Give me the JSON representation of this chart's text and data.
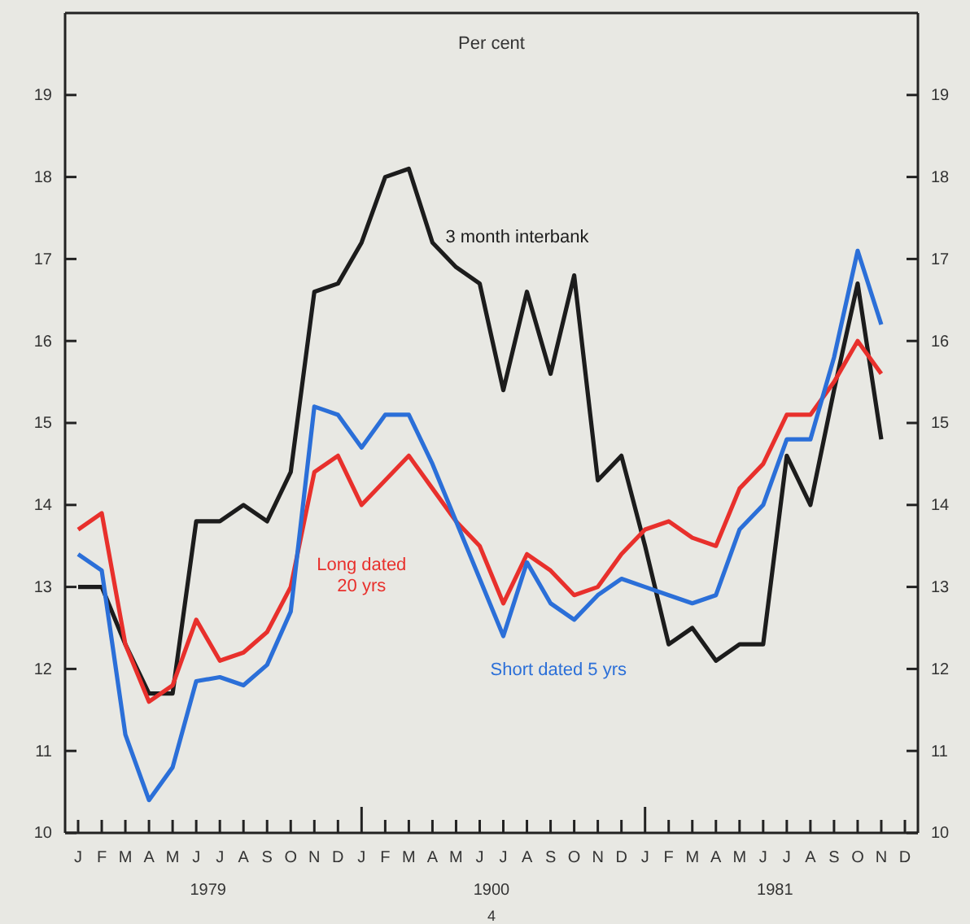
{
  "chart_data": {
    "type": "line",
    "subtitle": "Per cent",
    "categories": [
      "J",
      "F",
      "M",
      "A",
      "M",
      "J",
      "J",
      "A",
      "S",
      "O",
      "N",
      "D",
      "J",
      "F",
      "M",
      "A",
      "M",
      "J",
      "J",
      "A",
      "S",
      "O",
      "N",
      "D",
      "J",
      "F",
      "M",
      "A",
      "M",
      "J",
      "J",
      "A",
      "S",
      "O",
      "N",
      "D"
    ],
    "ylim": [
      10,
      20
    ],
    "yticks": [
      10,
      11,
      12,
      13,
      14,
      15,
      16,
      17,
      18,
      19
    ],
    "y2lim": [
      10,
      20
    ],
    "y2ticks": [
      10,
      11,
      12,
      13,
      14,
      15,
      16,
      17,
      18,
      19
    ],
    "series": [
      {
        "name": "3 month interbank",
        "color": "#1c1c1c",
        "values": [
          13.0,
          13.0,
          12.3,
          11.7,
          11.7,
          13.8,
          13.8,
          14.0,
          13.8,
          14.4,
          16.6,
          16.7,
          17.2,
          18.0,
          18.1,
          17.2,
          16.9,
          16.7,
          15.4,
          16.6,
          15.6,
          16.8,
          14.3,
          14.6,
          13.5,
          12.3,
          12.5,
          12.1,
          12.3,
          12.3,
          14.6,
          14.0,
          15.4,
          16.7,
          14.8,
          null
        ]
      },
      {
        "name": "Long dated 20 yrs",
        "color": "#e8302c",
        "values": [
          13.7,
          13.9,
          12.3,
          11.6,
          11.8,
          12.6,
          12.1,
          12.2,
          12.45,
          13.0,
          14.4,
          14.6,
          14.0,
          14.3,
          14.6,
          14.2,
          13.8,
          13.5,
          12.8,
          13.4,
          13.2,
          12.9,
          13.0,
          13.4,
          13.7,
          13.8,
          13.6,
          13.5,
          14.2,
          14.5,
          15.1,
          15.1,
          15.5,
          16.0,
          15.6,
          null
        ]
      },
      {
        "name": "Short dated 5 yrs",
        "color": "#2b6fd8",
        "values": [
          13.4,
          13.2,
          11.2,
          10.4,
          10.8,
          11.85,
          11.9,
          11.8,
          12.05,
          12.7,
          15.2,
          15.1,
          14.7,
          15.1,
          15.1,
          14.5,
          13.8,
          13.1,
          12.4,
          13.3,
          12.8,
          12.6,
          12.9,
          13.1,
          13.0,
          12.9,
          12.8,
          12.9,
          13.7,
          14.0,
          14.8,
          14.8,
          15.8,
          17.1,
          16.2,
          null
        ]
      }
    ],
    "annotations": [
      "1979",
      "1900",
      "1981",
      "4"
    ]
  }
}
